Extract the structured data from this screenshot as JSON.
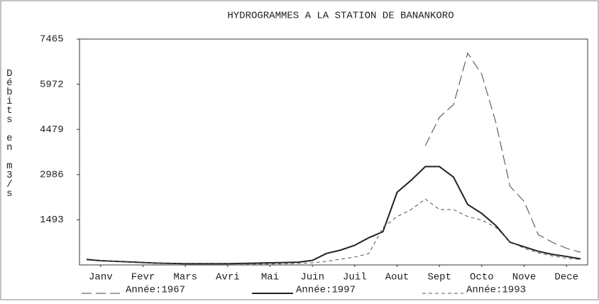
{
  "chart_data": {
    "type": "line",
    "title": "HYDROGRAMMES A LA STATION DE BANANKORO",
    "ylabel": "Débits en m3/s",
    "x": [
      0,
      1,
      2,
      3,
      4,
      5,
      6,
      7,
      8,
      9,
      10,
      11,
      12,
      13,
      14,
      15,
      16,
      17,
      18,
      19,
      20,
      21,
      22,
      23,
      24,
      25,
      26,
      27,
      28,
      29,
      30,
      31,
      32,
      33,
      34,
      35
    ],
    "xlim": [
      -0.5,
      35.5
    ],
    "xticks": [
      {
        "value": 1,
        "label": "Janv"
      },
      {
        "value": 4,
        "label": "Fevr"
      },
      {
        "value": 7,
        "label": "Mars"
      },
      {
        "value": 10,
        "label": "Avri"
      },
      {
        "value": 13,
        "label": "Mai"
      },
      {
        "value": 16,
        "label": "Juin"
      },
      {
        "value": 19,
        "label": "Juil"
      },
      {
        "value": 22,
        "label": "Aout"
      },
      {
        "value": 25,
        "label": "Sept"
      },
      {
        "value": 28,
        "label": "Octo"
      },
      {
        "value": 31,
        "label": "Nove"
      },
      {
        "value": 34,
        "label": "Dece"
      }
    ],
    "ylim": [
      0,
      7465
    ],
    "yticks": [
      1493,
      2986,
      4479,
      5972,
      7465
    ],
    "series": [
      {
        "name": "Année:1967",
        "color": "#444444",
        "dash": "long",
        "values": [
          null,
          null,
          null,
          null,
          null,
          null,
          null,
          null,
          null,
          null,
          null,
          null,
          null,
          null,
          null,
          null,
          null,
          null,
          null,
          null,
          null,
          null,
          null,
          null,
          3940,
          4880,
          5300,
          7000,
          6300,
          4700,
          2600,
          2100,
          1000,
          750,
          550,
          420
        ]
      },
      {
        "name": "Année:1997",
        "color": "#222222",
        "dash": "solid",
        "values": [
          180,
          140,
          120,
          100,
          80,
          60,
          50,
          40,
          40,
          40,
          40,
          50,
          60,
          70,
          80,
          90,
          150,
          380,
          490,
          650,
          900,
          1100,
          2400,
          2800,
          3250,
          3250,
          2900,
          2000,
          1700,
          1300,
          750,
          600,
          450,
          350,
          280,
          200
        ]
      },
      {
        "name": "Année:1993",
        "color": "#555555",
        "dash": "short",
        "values": [
          200,
          150,
          120,
          90,
          70,
          50,
          40,
          30,
          30,
          30,
          30,
          30,
          30,
          30,
          40,
          50,
          70,
          120,
          190,
          260,
          375,
          1240,
          1600,
          1830,
          2180,
          1830,
          1830,
          1600,
          1480,
          1240,
          775,
          550,
          400,
          300,
          220,
          180
        ]
      }
    ]
  }
}
